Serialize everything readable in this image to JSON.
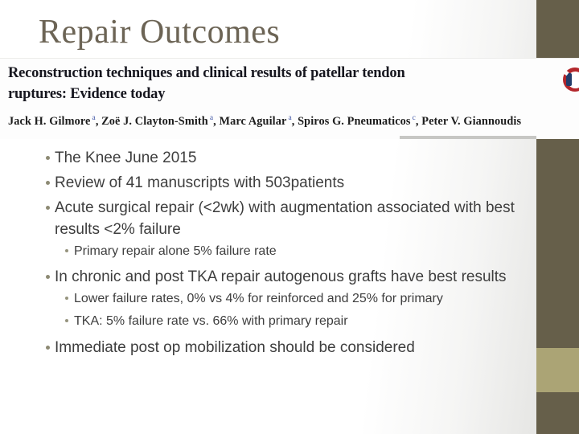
{
  "title": "Repair Outcomes",
  "article": {
    "title_line1": "Reconstruction techniques and clinical results of patellar tendon",
    "title_line2": "ruptures: Evidence today",
    "authors": [
      {
        "name": "Jack H. Gilmore",
        "sup": "a"
      },
      {
        "name": ", Zoë J. Clayton-Smith",
        "sup": "a"
      },
      {
        "name": ", Marc Aguilar",
        "sup": "a"
      },
      {
        "name": ", Spiros G. Pneumaticos",
        "sup": "c"
      },
      {
        "name": ", Peter V. Giannoudis",
        "sup": ""
      }
    ],
    "logo_icon": "crossmark-icon"
  },
  "bullets": [
    {
      "level": 1,
      "text": "The Knee June 2015"
    },
    {
      "level": 1,
      "text": "Review of 41 manuscripts with 503patients"
    },
    {
      "level": 1,
      "text": "Acute surgical repair (<2wk) with augmentation associated with best results <2% failure"
    },
    {
      "level": 2,
      "text": "Primary repair alone 5% failure rate"
    },
    {
      "level": 1,
      "text": "In chronic and post TKA repair autogenous grafts have best results"
    },
    {
      "level": 2,
      "text": "Lower failure rates, 0% vs 4% for reinforced and 25% for primary"
    },
    {
      "level": 2,
      "text": "TKA: 5% failure rate vs. 66% with primary repair"
    },
    {
      "level": 1,
      "text": "Immediate post op mobilization should be considered"
    }
  ],
  "colors": {
    "accent_dark_olive": "#665f4a",
    "accent_light_olive": "#aba475",
    "slide_title": "#6c6455",
    "bullet_text": "#3e3e3e",
    "bullet_dot": "#8d8a74",
    "article_text": "#17171f",
    "superscript_blue": "#4156a6",
    "logo_red": "#b3272c",
    "logo_navy": "#223d6b"
  }
}
